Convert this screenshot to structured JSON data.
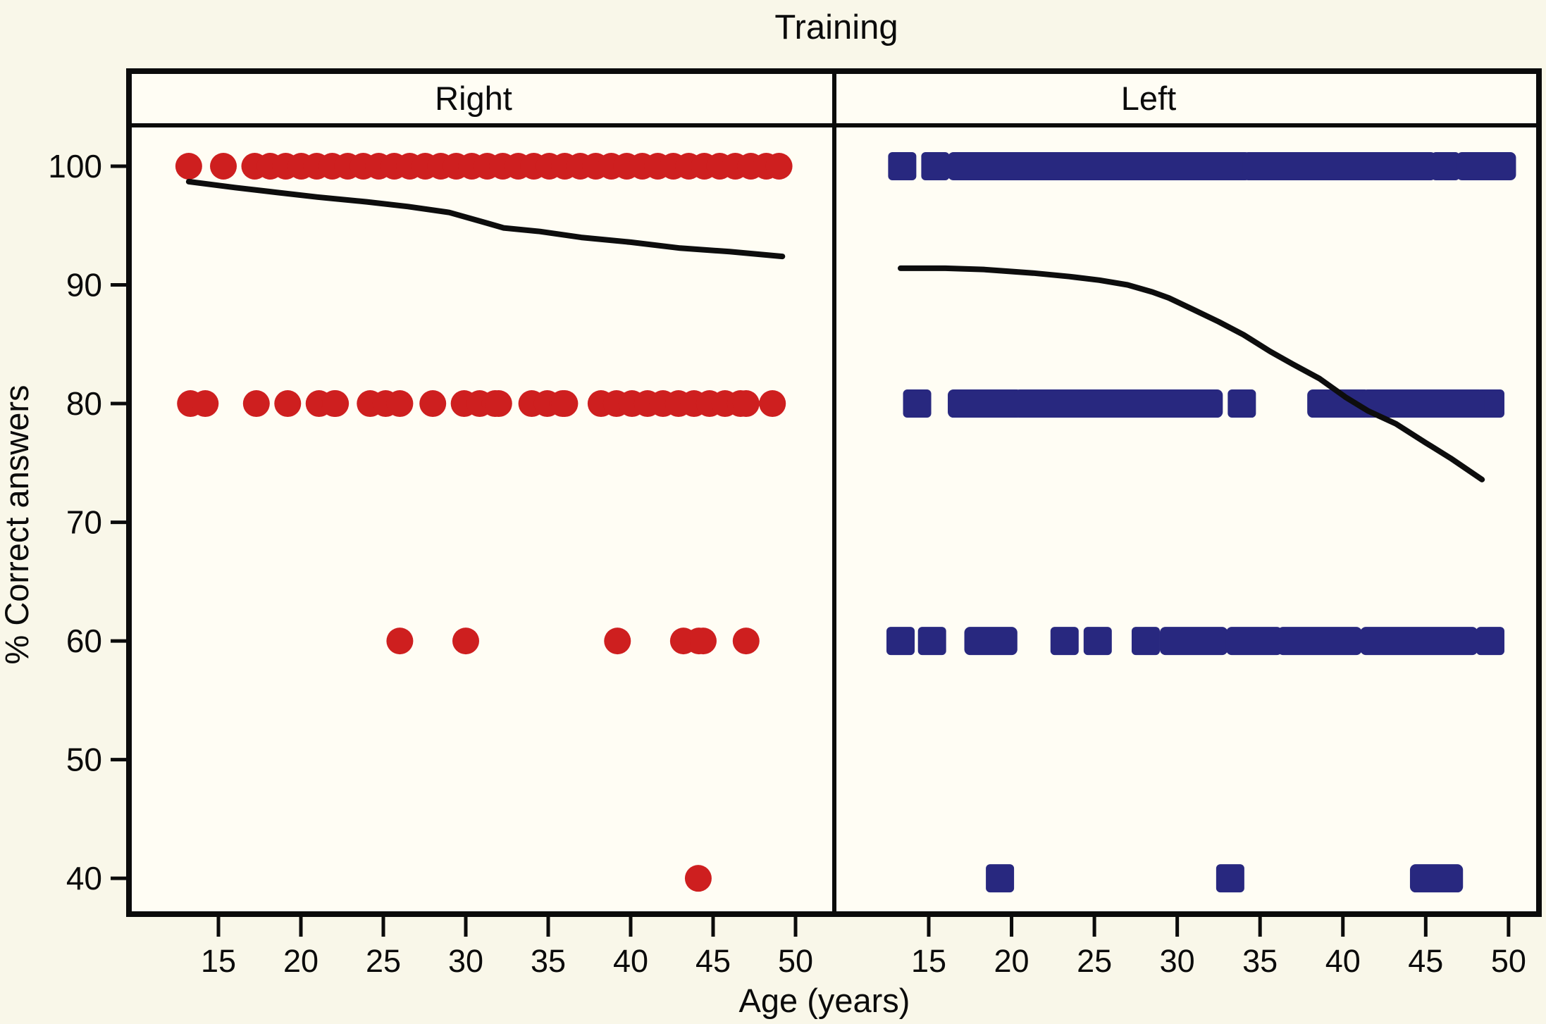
{
  "figure": {
    "title": "Training",
    "background": "#f9f7e9",
    "plot_background": "#fffdf4",
    "frame_color": "#0b0b0b"
  },
  "chart_data": {
    "type": "scatter",
    "title": "Training",
    "xlabel": "Age (years)",
    "ylabel": "% Correct answers",
    "x_ticks": [
      15,
      20,
      25,
      30,
      35,
      40,
      45,
      50
    ],
    "y_ticks": [
      100,
      90,
      80,
      70,
      60,
      50,
      40
    ],
    "xlim": [
      10,
      52.5
    ],
    "ylim": [
      37,
      103.5
    ],
    "grid": false,
    "legend": "none",
    "layout": "two-panel trellis, shared y axis, smoothed trend line per panel",
    "panels": [
      {
        "name": "Right",
        "marker": "circle",
        "marker_color": "#ce1f1f",
        "rows": [
          {
            "y": 100,
            "singles": [
              13.2,
              15.3
            ],
            "runs": [
              [
                17.2,
                49.0
              ]
            ]
          },
          {
            "y": 80,
            "singles": [
              17.3,
              19.2,
              28.0,
              48.6
            ],
            "runs": [
              [
                13.3,
                14.2
              ],
              [
                21.1,
                22.1
              ],
              [
                24.2,
                26.0
              ],
              [
                29.9,
                32.0
              ],
              [
                34.0,
                36.0
              ],
              [
                38.2,
                47.0
              ]
            ]
          },
          {
            "y": 60,
            "singles": [
              26.0,
              30.0,
              39.2,
              47.0
            ],
            "runs": [
              [
                43.2,
                44.4
              ]
            ]
          },
          {
            "y": 40,
            "singles": [
              44.1
            ],
            "runs": []
          }
        ],
        "trend": [
          [
            13.2,
            98.7
          ],
          [
            16.0,
            98.2
          ],
          [
            18.5,
            97.8
          ],
          [
            21.0,
            97.4
          ],
          [
            24.0,
            97.0
          ],
          [
            26.5,
            96.6
          ],
          [
            29.0,
            96.1
          ],
          [
            31.3,
            95.2
          ],
          [
            32.3,
            94.8
          ],
          [
            34.5,
            94.5
          ],
          [
            37.0,
            94.0
          ],
          [
            40.0,
            93.6
          ],
          [
            43.0,
            93.1
          ],
          [
            46.0,
            92.8
          ],
          [
            49.2,
            92.4
          ]
        ]
      },
      {
        "name": "Left",
        "marker": "square",
        "marker_color": "#28287f",
        "rows": [
          {
            "y": 100,
            "singles": [
              13.4,
              15.4,
              46.2
            ],
            "runs": [
              [
                17.0,
                30.6
              ],
              [
                31.6,
                33.6
              ],
              [
                34.8,
                44.8
              ],
              [
                47.7,
                49.6
              ]
            ]
          },
          {
            "y": 80,
            "singles": [
              14.3,
              33.9,
              48.9
            ],
            "runs": [
              [
                17.0,
                19.8
              ],
              [
                21.0,
                24.1
              ],
              [
                24.8,
                31.9
              ],
              [
                38.7,
                40.8
              ],
              [
                42.0,
                47.7
              ]
            ]
          },
          {
            "y": 60,
            "singles": [
              13.3,
              15.2,
              23.2,
              25.2,
              28.1,
              48.9
            ],
            "runs": [
              [
                18.0,
                19.5
              ],
              [
                29.8,
                32.2
              ],
              [
                33.8,
                35.5
              ],
              [
                36.9,
                40.3
              ],
              [
                41.9,
                47.3
              ]
            ]
          },
          {
            "y": 40,
            "singles": [
              19.3,
              33.2
            ],
            "runs": [
              [
                44.9,
                46.4
              ]
            ]
          }
        ],
        "trend": [
          [
            13.3,
            91.4
          ],
          [
            16.0,
            91.4
          ],
          [
            18.3,
            91.3
          ],
          [
            21.3,
            91.0
          ],
          [
            23.5,
            90.7
          ],
          [
            25.3,
            90.4
          ],
          [
            27.0,
            90.0
          ],
          [
            28.5,
            89.4
          ],
          [
            29.5,
            88.9
          ],
          [
            31.0,
            87.9
          ],
          [
            32.5,
            86.9
          ],
          [
            34.0,
            85.8
          ],
          [
            35.6,
            84.4
          ],
          [
            37.0,
            83.3
          ],
          [
            38.6,
            82.1
          ],
          [
            40.2,
            80.5
          ],
          [
            41.5,
            79.4
          ],
          [
            43.2,
            78.3
          ],
          [
            45.0,
            76.7
          ],
          [
            46.5,
            75.4
          ],
          [
            48.4,
            73.6
          ]
        ]
      }
    ],
    "trend_color": "#0d0d0d"
  }
}
